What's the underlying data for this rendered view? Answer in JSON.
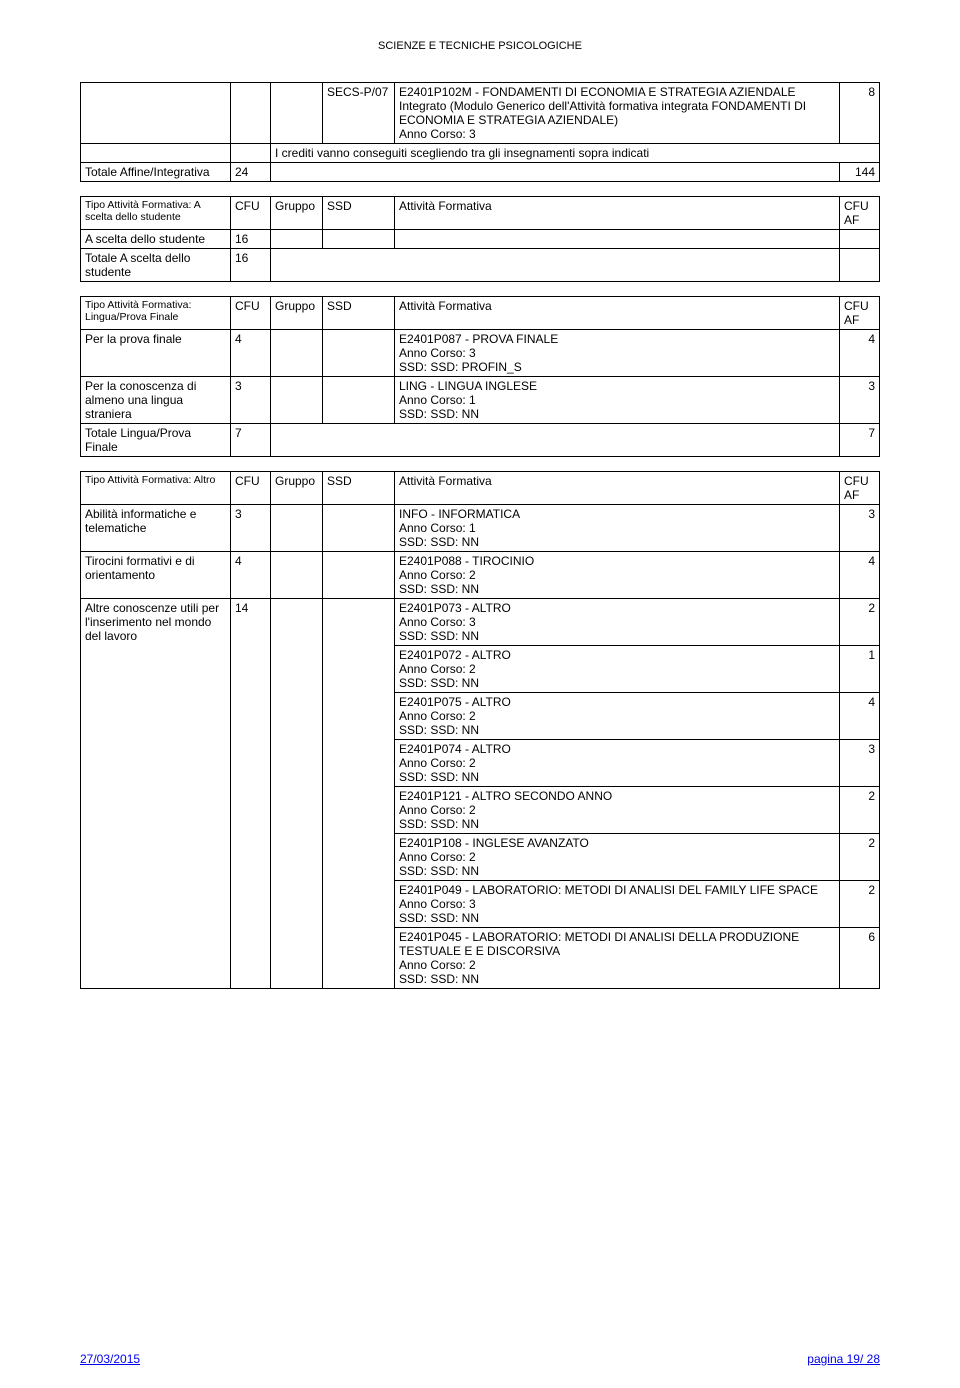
{
  "header_title": "SCIENZE E TECNICHE PSICOLOGICHE",
  "col": {
    "cfu": "CFU",
    "gruppo": "Gruppo",
    "ssd": "SSD",
    "attivita": "Attività Formativa",
    "cfu_af": "CFU\nAF"
  },
  "tableA": {
    "ssd": "SECS-P/07",
    "activity": "E2401P102M - FONDAMENTI DI ECONOMIA E STRATEGIA AZIENDALE\nIntegrato (Modulo Generico dell'Attività formativa integrata FONDAMENTI DI ECONOMIA E STRATEGIA AZIENDALE)\nAnno Corso: 3",
    "activity_cfu": "8",
    "credits_note": "I crediti vanno conseguiti scegliendo tra gli insegnamenti sopra indicati",
    "total_label": "Totale Affine/Integrativa",
    "total_cfu": "24",
    "total_right": "144"
  },
  "tableB": {
    "type_label": "Tipo Attività Formativa: A scelta dello studente",
    "row1_label": "A scelta dello studente",
    "row1_cfu": "16",
    "total_label": "Totale A scelta dello studente",
    "total_cfu": "16"
  },
  "tableC": {
    "type_label": "Tipo Attività Formativa: Lingua/Prova Finale",
    "rows": [
      {
        "label": "Per la prova finale",
        "cfu": "4",
        "activity": "E2401P087 - PROVA FINALE\nAnno Corso: 3\nSSD: SSD: PROFIN_S",
        "af": "4"
      },
      {
        "label": "Per la conoscenza di almeno una lingua straniera",
        "cfu": "3",
        "activity": "LING - LINGUA INGLESE\nAnno Corso: 1\nSSD: SSD: NN",
        "af": "3"
      }
    ],
    "total_label": "Totale Lingua/Prova Finale",
    "total_cfu": "7",
    "total_right": "7"
  },
  "tableD": {
    "type_label": "Tipo Attività Formativa: Altro",
    "groups": [
      {
        "label": "Abilità informatiche e telematiche",
        "cfu": "3",
        "acts": [
          {
            "txt": "INFO - INFORMATICA\nAnno Corso: 1\nSSD: SSD: NN",
            "af": "3"
          }
        ]
      },
      {
        "label": "Tirocini formativi e di orientamento",
        "cfu": "4",
        "acts": [
          {
            "txt": "E2401P088 - TIROCINIO\nAnno Corso: 2\nSSD: SSD: NN",
            "af": "4"
          }
        ]
      },
      {
        "label": "Altre conoscenze utili per l'inserimento nel mondo del lavoro",
        "cfu": "14",
        "acts": [
          {
            "txt": "E2401P073 - ALTRO\nAnno Corso: 3\nSSD: SSD: NN",
            "af": "2"
          },
          {
            "txt": "E2401P072 - ALTRO\nAnno Corso: 2\nSSD: SSD: NN",
            "af": "1"
          },
          {
            "txt": "E2401P075 - ALTRO\nAnno Corso: 2\nSSD: SSD: NN",
            "af": "4"
          },
          {
            "txt": "E2401P074 - ALTRO\nAnno Corso: 2\nSSD: SSD: NN",
            "af": "3"
          },
          {
            "txt": "E2401P121 - ALTRO SECONDO ANNO\nAnno Corso: 2\nSSD: SSD: NN",
            "af": "2"
          },
          {
            "txt": "E2401P108 - INGLESE AVANZATO\nAnno Corso: 2\nSSD: SSD: NN",
            "af": "2"
          },
          {
            "txt": "E2401P049 - LABORATORIO: METODI DI ANALISI DEL FAMILY LIFE SPACE\nAnno Corso: 3\nSSD: SSD: NN",
            "af": "2"
          },
          {
            "txt": "E2401P045 - LABORATORIO: METODI DI ANALISI DELLA PRODUZIONE TESTUALE E E DISCORSIVA\nAnno Corso: 2\nSSD: SSD: NN",
            "af": "6"
          }
        ]
      }
    ]
  },
  "footer": {
    "date": "27/03/2015",
    "page": "pagina 19/ 28"
  }
}
